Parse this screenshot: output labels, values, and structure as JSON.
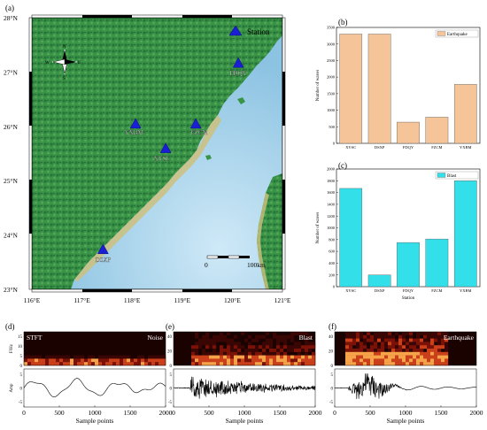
{
  "panel_labels": {
    "a": "(a)",
    "b": "(b)",
    "c": "(c)",
    "d": "(d)",
    "e": "(e)",
    "f": "(f)"
  },
  "map": {
    "legend": "Station",
    "lat_ticks": [
      "28°N",
      "27°N",
      "26°N",
      "25°N",
      "24°N",
      "23°N"
    ],
    "lon_ticks": [
      "116°E",
      "117°E",
      "118°E",
      "119°E",
      "120°E",
      "121°E"
    ],
    "compass": {
      "n": "N",
      "s": "S",
      "e": "E",
      "w": "W"
    },
    "scale": {
      "zero": "0",
      "end": "100km"
    },
    "stations": [
      {
        "name": "FDQY",
        "lon": 120.12,
        "lat": 27.15
      },
      {
        "name": "YXBM",
        "lon": 118.07,
        "lat": 26.03
      },
      {
        "name": "FZCM",
        "lon": 119.27,
        "lat": 26.03
      },
      {
        "name": "XYSC",
        "lon": 118.67,
        "lat": 25.58
      },
      {
        "name": "DSXP",
        "lon": 117.42,
        "lat": 23.72
      }
    ],
    "colors": {
      "land": "#2e8a3e",
      "sea": "#a9d4ec",
      "station": "#1a1fd6"
    }
  },
  "chart_data": [
    {
      "type": "bar",
      "panel": "b",
      "categories": [
        "XYSC",
        "DSXP",
        "FDQY",
        "FZCM",
        "YXBM"
      ],
      "series": [
        {
          "name": "Earthquake",
          "values": [
            3300,
            3300,
            640,
            790,
            1780
          ]
        }
      ],
      "ylabel": "Number of waves",
      "ylim": [
        0,
        3500
      ],
      "yticks": [
        0,
        500,
        1000,
        1500,
        2000,
        2500,
        3000,
        3500
      ],
      "color": "#f5c599"
    },
    {
      "type": "bar",
      "panel": "c",
      "categories": [
        "XYSC",
        "DSXP",
        "FDQY",
        "FZCM",
        "YXBM"
      ],
      "series": [
        {
          "name": "Blast",
          "values": [
            1670,
            200,
            750,
            810,
            1800
          ]
        }
      ],
      "xlabel": "Station",
      "ylabel": "Number of waves",
      "ylim": [
        0,
        2000
      ],
      "yticks": [
        0,
        200,
        400,
        600,
        800,
        1000,
        1200,
        1400,
        1600,
        1800,
        2000
      ],
      "color": "#33e0ea"
    }
  ],
  "waveforms": {
    "spec_ylabel": "F/Hz",
    "amp_ylabel": "Amp",
    "xlabel": "Sample points",
    "xticks": [
      0,
      500,
      1000,
      1500,
      2000
    ],
    "spec_yticks": [
      0,
      20,
      40
    ],
    "panels": [
      {
        "id": "d",
        "stft": "STFT",
        "title": "Noise",
        "spec_yticks": [
          0,
          5,
          10,
          15
        ],
        "amp_yticks": [
          -5,
          0,
          5
        ]
      },
      {
        "id": "e",
        "title": "Blast",
        "spec_yticks": [
          0,
          20,
          40
        ],
        "amp_yticks": [
          -5,
          0,
          5
        ]
      },
      {
        "id": "f",
        "title": "Earthquake",
        "spec_yticks": [
          0,
          20,
          40
        ],
        "amp_yticks": [
          -5,
          0,
          5
        ]
      }
    ]
  }
}
